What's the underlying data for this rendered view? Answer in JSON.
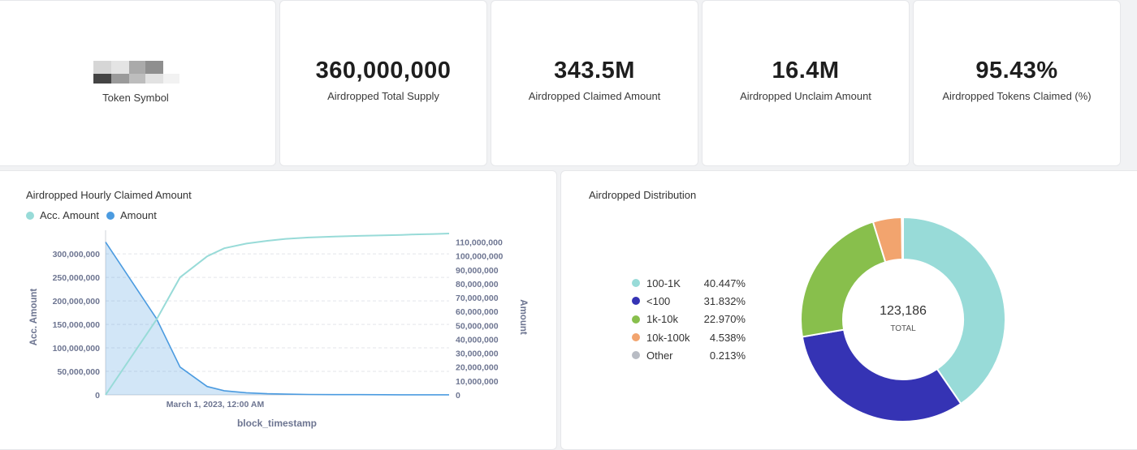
{
  "kpis": {
    "token_symbol_label": "Token Symbol",
    "total_supply": {
      "value": "360,000,000",
      "label": "Airdropped Total Supply"
    },
    "claimed": {
      "value": "343.5M",
      "label": "Airdropped Claimed Amount"
    },
    "unclaimed": {
      "value": "16.4M",
      "label": "Airdropped Unclaim Amount"
    },
    "claimed_pct": {
      "value": "95.43%",
      "label": "Airdropped Tokens Claimed (%)"
    }
  },
  "hourly_panel": {
    "title": "Airdropped Hourly Claimed Amount",
    "legend": [
      {
        "name": "Acc. Amount",
        "color": "#98dbd8"
      },
      {
        "name": "Amount",
        "color": "#4b9be0"
      }
    ]
  },
  "distribution_panel": {
    "title": "Airdropped Distribution",
    "total_value": "123,186",
    "total_label": "TOTAL"
  },
  "chart_data": [
    {
      "type": "line",
      "title": "Airdropped Hourly Claimed Amount",
      "xlabel": "block_timestamp",
      "ylabel": "Acc. Amount",
      "y2label": "Amount",
      "x_tick_labels": [
        "March 1, 2023, 12:00 AM"
      ],
      "y_ticks": [
        "0",
        "50,000,000",
        "100,000,000",
        "150,000,000",
        "200,000,000",
        "250,000,000",
        "300,000,000"
      ],
      "y2_ticks": [
        "0",
        "10,000,000",
        "20,000,000",
        "30,000,000",
        "40,000,000",
        "50,000,000",
        "60,000,000",
        "70,000,000",
        "80,000,000",
        "90,000,000",
        "100,000,000",
        "110,000,000"
      ],
      "ylim": [
        0,
        340000000
      ],
      "y2lim": [
        0,
        115000000
      ],
      "grid": true,
      "legend_position": "top-left",
      "series": [
        {
          "name": "Acc. Amount",
          "axis": "left",
          "color": "#98dbd8",
          "x": [
            0,
            0.5,
            1,
            2,
            3,
            5,
            8,
            12,
            20,
            35,
            60,
            100,
            150,
            200,
            300,
            420
          ],
          "y": [
            0,
            160000000,
            250000000,
            295000000,
            312000000,
            322000000,
            328000000,
            332000000,
            335000000,
            337000000,
            338500000,
            339500000,
            340500000,
            341500000,
            342500000,
            343500000
          ]
        },
        {
          "name": "Amount",
          "axis": "right",
          "color": "#4b9be0",
          "x": [
            0,
            0.5,
            1,
            2,
            3,
            5,
            8,
            12,
            20,
            35,
            60,
            100,
            150,
            200,
            300,
            420
          ],
          "y": [
            110000000,
            55000000,
            20000000,
            6000000,
            3000000,
            1500000,
            800000,
            500000,
            300000,
            200000,
            150000,
            100000,
            80000,
            60000,
            50000,
            40000
          ]
        }
      ]
    },
    {
      "type": "pie",
      "title": "Airdropped Distribution",
      "series": [
        {
          "name": "100-1K",
          "value": 40.447,
          "label": "40.447%",
          "color": "#98dbd8"
        },
        {
          "name": "<100",
          "value": 31.832,
          "label": "31.832%",
          "color": "#3533b4"
        },
        {
          "name": "1k-10k",
          "value": 22.97,
          "label": "22.970%",
          "color": "#88bf4c"
        },
        {
          "name": "10k-100k",
          "value": 4.538,
          "label": "4.538%",
          "color": "#f2a46e"
        },
        {
          "name": "Other",
          "value": 0.213,
          "label": "0.213%",
          "color": "#b8bcc4"
        }
      ]
    }
  ]
}
